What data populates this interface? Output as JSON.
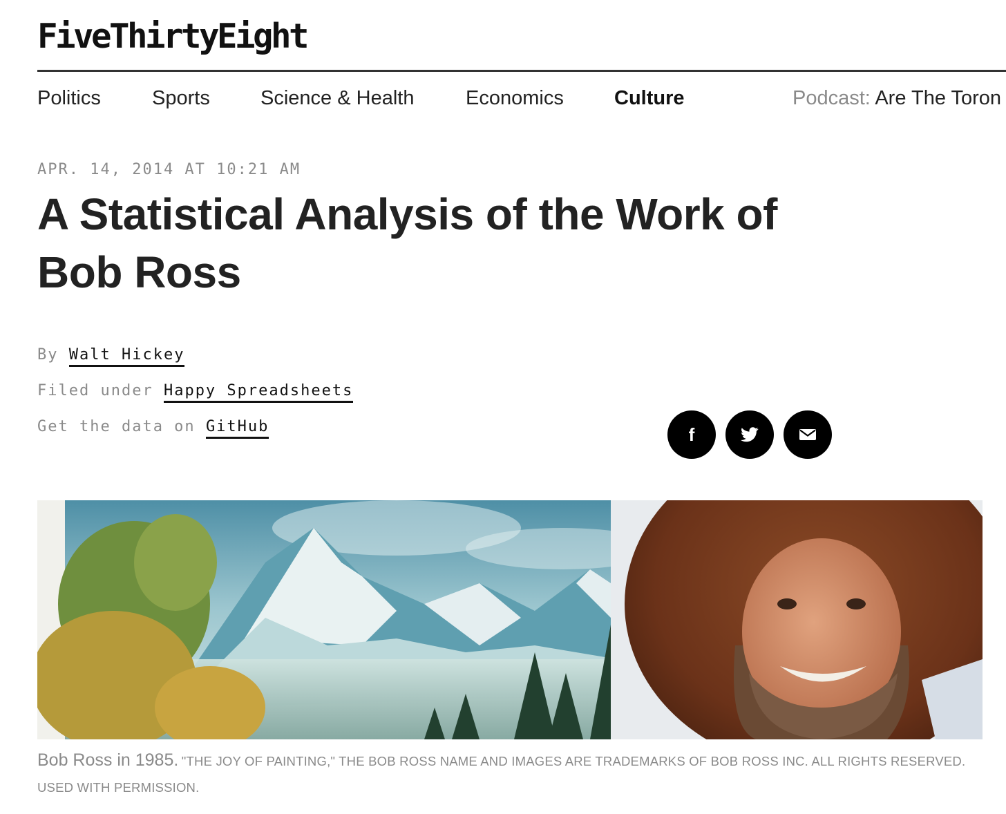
{
  "site": {
    "logo": "FiveThirtyEight"
  },
  "nav": {
    "items": [
      {
        "label": "Politics"
      },
      {
        "label": "Sports"
      },
      {
        "label": "Science & Health"
      },
      {
        "label": "Economics"
      },
      {
        "label": "Culture",
        "active": true
      }
    ],
    "podcast_label": "Podcast:",
    "podcast_title": "Are The Toron"
  },
  "article": {
    "dateline": "APR. 14, 2014 AT 10:21 AM",
    "headline_line1": "A Statistical Analysis of the Work of",
    "headline_line2": "Bob Ross",
    "byline_prefix": "By",
    "author": "Walt Hickey",
    "filed_prefix": "Filed under",
    "category": "Happy Spreadsheets",
    "data_prefix": "Get the data on",
    "data_link": "GitHub"
  },
  "share": {
    "facebook_glyph": "f"
  },
  "hero": {
    "caption_lead": "Bob Ross in 1985.",
    "caption_credit": "\"THE JOY OF PAINTING,\" THE BOB ROSS NAME AND IMAGES ARE TRADEMARKS OF BOB ROSS INC. ALL RIGHTS RESERVED. USED WITH PERMISSION."
  },
  "colors": {
    "text": "#222222",
    "muted": "#8a8a8a",
    "share_bg": "#000000"
  }
}
